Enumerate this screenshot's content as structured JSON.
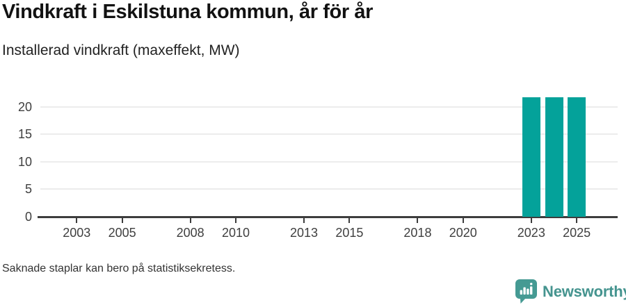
{
  "header": {
    "title": "Vindkraft i Eskilstuna kommun, år för år",
    "subtitle": "Installerad vindkraft (maxeffekt, MW)"
  },
  "chart_data": {
    "type": "bar",
    "title": "Vindkraft i Eskilstuna kommun, år för år",
    "subtitle": "Installerad vindkraft (maxeffekt, MW)",
    "ylabel": "Installerad vindkraft (maxeffekt, MW)",
    "xlabel": "",
    "unit": "MW",
    "points": [
      {
        "year": 2023,
        "value": 21.7
      },
      {
        "year": 2024,
        "value": 21.7
      },
      {
        "year": 2025,
        "value": 21.7
      }
    ],
    "xticks": [
      2003,
      2005,
      2008,
      2010,
      2013,
      2015,
      2018,
      2020,
      2023,
      2025
    ],
    "yticks": [
      0,
      5,
      10,
      15,
      20
    ],
    "xlim": [
      2001.4,
      2026.8
    ],
    "ylim": [
      0,
      23
    ],
    "grid": true,
    "legend": false,
    "bar_color": "#04a29a",
    "axis_color": "#3d3d3d",
    "grid_color": "#ececec"
  },
  "footnote": "Saknade staplar kan bero på statistiksekretess.",
  "brand": {
    "name": "Newsworthy",
    "color": "#45948f",
    "icon_color": "#459a93",
    "icon": "newsworthy-bubble-barchart-icon"
  }
}
